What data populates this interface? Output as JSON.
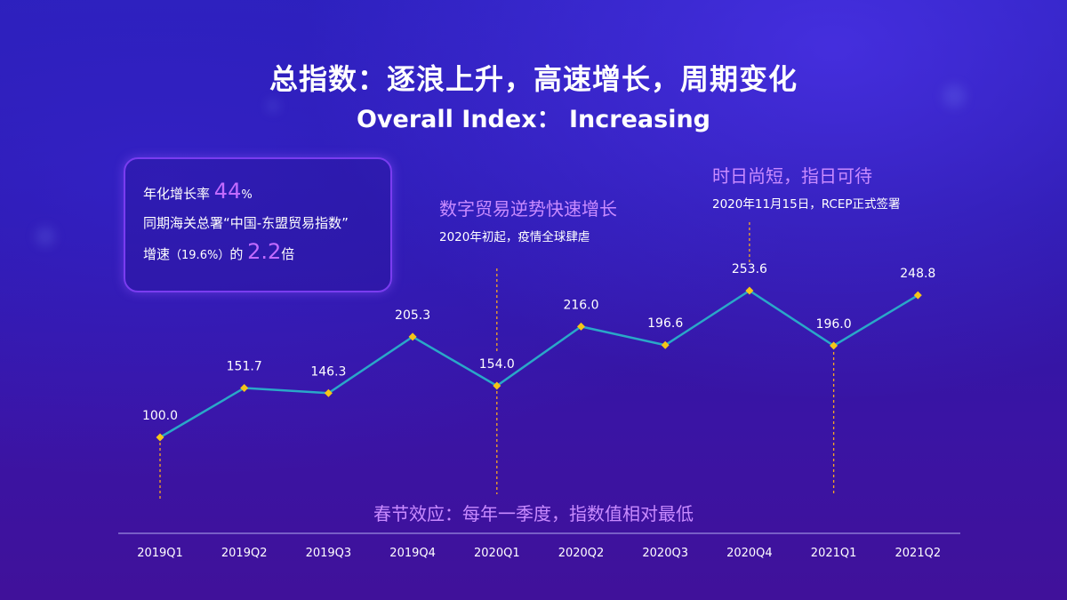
{
  "header": {
    "title_cn": "总指数：逐浪上升，高速增长，周期变化",
    "title_en": "Overall Index： Increasing"
  },
  "info_box": {
    "line1_prefix": "年化增长率",
    "line1_value": "44",
    "line1_unit": "%",
    "line2": "同期海关总署“中国-东盟贸易指数”",
    "line3_prefix": "增速",
    "line3_paren": "（19.6%）",
    "line3_mid": "的",
    "line3_value": "2.2",
    "line3_suffix": "倍"
  },
  "annotations": {
    "covid_title": "数字贸易逆势快速增长",
    "covid_sub": "2020年初起，疫情全球肆虐",
    "rcep_title": "时日尚短，指日可待",
    "rcep_sub": "2020年11月15日，RCEP正式签署",
    "seasonal": "春节效应：每年一季度，指数值相对最低"
  },
  "colors": {
    "line": "#2aa8c8",
    "marker": "#f5c518",
    "guide": "#f5a623",
    "axis": "#9a8ce0",
    "accent": "#c26bff"
  },
  "chart_data": {
    "type": "line",
    "title": "总指数：逐浪上升，高速增长，周期变化",
    "categories": [
      "2019Q1",
      "2019Q2",
      "2019Q3",
      "2019Q4",
      "2020Q1",
      "2020Q2",
      "2020Q3",
      "2020Q4",
      "2021Q1",
      "2021Q2"
    ],
    "series": [
      {
        "name": "Overall Index",
        "values": [
          100.0,
          151.7,
          146.3,
          205.3,
          154.0,
          216.0,
          196.6,
          253.6,
          196.0,
          248.8
        ],
        "labels": [
          "100.0",
          "151.7",
          "146.3",
          "205.3",
          "154.0",
          "216.0",
          "196.6",
          "253.6",
          "196.0",
          "248.8"
        ]
      }
    ],
    "xlabel": "",
    "ylabel": "",
    "ylim": [
      100,
      253.6
    ],
    "grid": false,
    "legend": "none"
  }
}
